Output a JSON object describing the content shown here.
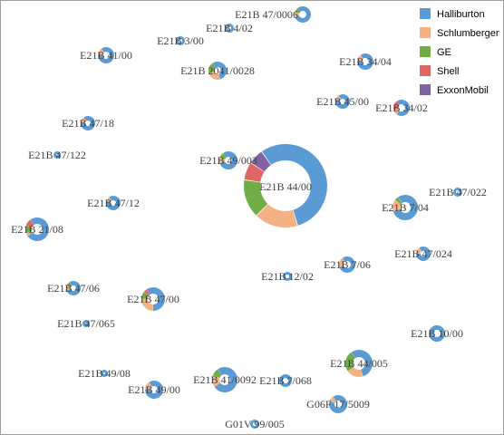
{
  "chart_data": {
    "type": "pie",
    "variant": "bubble-donut network",
    "title": "",
    "legend": {
      "position": "top-right",
      "entries": [
        "Halliburton",
        "Schlumberger",
        "GE",
        "Shell",
        "ExxonMobil"
      ]
    },
    "colors": {
      "Halliburton": "#5b9bd5",
      "Schlumberger": "#f4b183",
      "GE": "#70ad47",
      "Shell": "#e06666",
      "ExxonMobil": "#8064a2"
    },
    "nodes": [
      {
        "label": "E21B 47/0006",
        "shares": {
          "Halliburton": 0.8,
          "Schlumberger": 0.1,
          "GE": 0.1,
          "Shell": 0,
          "ExxonMobil": 0
        }
      },
      {
        "label": "E21B 4/02",
        "shares": {
          "Halliburton": 1,
          "Schlumberger": 0,
          "GE": 0,
          "Shell": 0,
          "ExxonMobil": 0
        }
      },
      {
        "label": "E21B 3/00",
        "shares": {
          "Halliburton": 1,
          "Schlumberger": 0,
          "GE": 0,
          "Shell": 0,
          "ExxonMobil": 0
        }
      },
      {
        "label": "E21B 41/00",
        "shares": {
          "Halliburton": 0.85,
          "Schlumberger": 0.15,
          "GE": 0,
          "Shell": 0,
          "ExxonMobil": 0
        }
      },
      {
        "label": "E21B 2041/0028",
        "shares": {
          "Halliburton": 0.55,
          "Schlumberger": 0.25,
          "GE": 0.2,
          "Shell": 0,
          "ExxonMobil": 0
        }
      },
      {
        "label": "E21B 34/04",
        "shares": {
          "Halliburton": 0.85,
          "Schlumberger": 0.15,
          "GE": 0,
          "Shell": 0,
          "ExxonMobil": 0
        }
      },
      {
        "label": "E21B 45/00",
        "shares": {
          "Halliburton": 0.9,
          "Schlumberger": 0.1,
          "GE": 0,
          "Shell": 0,
          "ExxonMobil": 0
        }
      },
      {
        "label": "E21B 34/02",
        "shares": {
          "Halliburton": 0.7,
          "Schlumberger": 0.1,
          "GE": 0,
          "Shell": 0.2,
          "ExxonMobil": 0
        }
      },
      {
        "label": "E21B 47/18",
        "shares": {
          "Halliburton": 0.85,
          "Schlumberger": 0.15,
          "GE": 0,
          "Shell": 0,
          "ExxonMobil": 0
        }
      },
      {
        "label": "E21B 47/122",
        "shares": {
          "Halliburton": 1,
          "Schlumberger": 0,
          "GE": 0,
          "Shell": 0,
          "ExxonMobil": 0
        }
      },
      {
        "label": "E21B 49/003",
        "shares": {
          "Halliburton": 0.8,
          "Schlumberger": 0.1,
          "GE": 0.1,
          "Shell": 0,
          "ExxonMobil": 0
        }
      },
      {
        "label": "E21B 44/00",
        "shares": {
          "Halliburton": 0.55,
          "Schlumberger": 0.17,
          "GE": 0.15,
          "Shell": 0.07,
          "ExxonMobil": 0.06
        }
      },
      {
        "label": "E21B 47/022",
        "shares": {
          "Halliburton": 1,
          "Schlumberger": 0,
          "GE": 0,
          "Shell": 0,
          "ExxonMobil": 0
        }
      },
      {
        "label": "E21B 47/12",
        "shares": {
          "Halliburton": 0.9,
          "Schlumberger": 0.1,
          "GE": 0,
          "Shell": 0,
          "ExxonMobil": 0
        }
      },
      {
        "label": "E21B 7/04",
        "shares": {
          "Halliburton": 0.8,
          "Schlumberger": 0.15,
          "GE": 0.05,
          "Shell": 0,
          "ExxonMobil": 0
        }
      },
      {
        "label": "E21B 21/08",
        "shares": {
          "Halliburton": 0.75,
          "Schlumberger": 0.05,
          "GE": 0.1,
          "Shell": 0.1,
          "ExxonMobil": 0
        }
      },
      {
        "label": "E21B 47/024",
        "shares": {
          "Halliburton": 0.85,
          "Schlumberger": 0.15,
          "GE": 0,
          "Shell": 0,
          "ExxonMobil": 0
        }
      },
      {
        "label": "E21B 7/06",
        "shares": {
          "Halliburton": 0.8,
          "Schlumberger": 0.2,
          "GE": 0,
          "Shell": 0,
          "ExxonMobil": 0
        }
      },
      {
        "label": "E21B 12/02",
        "shares": {
          "Halliburton": 1,
          "Schlumberger": 0,
          "GE": 0,
          "Shell": 0,
          "ExxonMobil": 0
        }
      },
      {
        "label": "E21B 47/06",
        "shares": {
          "Halliburton": 0.8,
          "Schlumberger": 0.1,
          "GE": 0.1,
          "Shell": 0,
          "ExxonMobil": 0
        }
      },
      {
        "label": "E21B 47/00",
        "shares": {
          "Halliburton": 0.6,
          "Schlumberger": 0.25,
          "GE": 0.1,
          "Shell": 0.05,
          "ExxonMobil": 0
        }
      },
      {
        "label": "E21B 47/065",
        "shares": {
          "Halliburton": 1,
          "Schlumberger": 0,
          "GE": 0,
          "Shell": 0,
          "ExxonMobil": 0
        }
      },
      {
        "label": "E21B 10/00",
        "shares": {
          "Halliburton": 1,
          "Schlumberger": 0,
          "GE": 0,
          "Shell": 0,
          "ExxonMobil": 0
        }
      },
      {
        "label": "E21B 49/08",
        "shares": {
          "Halliburton": 1,
          "Schlumberger": 0,
          "GE": 0,
          "Shell": 0,
          "ExxonMobil": 0
        }
      },
      {
        "label": "E21B 49/00",
        "shares": {
          "Halliburton": 0.85,
          "Schlumberger": 0.15,
          "GE": 0,
          "Shell": 0,
          "ExxonMobil": 0
        }
      },
      {
        "label": "E21B 41/0092",
        "shares": {
          "Halliburton": 0.75,
          "Schlumberger": 0.15,
          "GE": 0.1,
          "Shell": 0,
          "ExxonMobil": 0
        }
      },
      {
        "label": "E21B 7/068",
        "shares": {
          "Halliburton": 1,
          "Schlumberger": 0,
          "GE": 0,
          "Shell": 0,
          "ExxonMobil": 0
        }
      },
      {
        "label": "E21B 44/005",
        "shares": {
          "Halliburton": 0.55,
          "Schlumberger": 0.2,
          "GE": 0.25,
          "Shell": 0,
          "ExxonMobil": 0
        }
      },
      {
        "label": "G06F 17/5009",
        "shares": {
          "Halliburton": 0.9,
          "Schlumberger": 0.1,
          "GE": 0,
          "Shell": 0,
          "ExxonMobil": 0
        }
      },
      {
        "label": "G01V 99/005",
        "shares": {
          "Halliburton": 1,
          "Schlumberger": 0,
          "GE": 0,
          "Shell": 0,
          "ExxonMobil": 0
        }
      }
    ]
  }
}
